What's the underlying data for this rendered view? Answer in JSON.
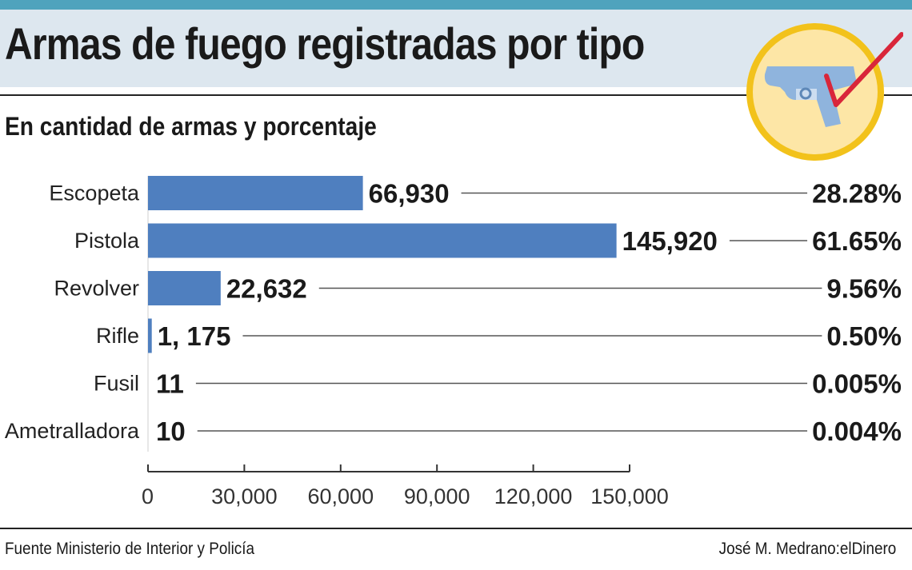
{
  "header": {
    "title": "Armas de fuego registradas por tipo",
    "subtitle": "En cantidad de armas y porcentaje"
  },
  "icons": {
    "badge": "pistol-checkmark-icon"
  },
  "colors": {
    "bar": "#4f7fbf",
    "topbar": "#4fa3bd",
    "titleband": "#dde7ef",
    "badge_fill": "#fde6a6",
    "badge_ring": "#f2c21b",
    "check": "#d9263a"
  },
  "chart_data": {
    "type": "bar",
    "orientation": "horizontal",
    "categories": [
      "Escopeta",
      "Pistola",
      "Revolver",
      "Rifle",
      "Fusil",
      "Ametralladora"
    ],
    "values": [
      66930,
      145920,
      22632,
      1175,
      11,
      10
    ],
    "value_labels": [
      "66,930",
      "145,920",
      "22,632",
      "1, 175",
      "11",
      "10"
    ],
    "percent_labels": [
      "28.28%",
      "61.65%",
      "9.56%",
      "0.50%",
      "0.005%",
      "0.004%"
    ],
    "xlim": [
      0,
      150000
    ],
    "xticks": [
      0,
      30000,
      60000,
      90000,
      120000,
      150000
    ],
    "xtick_labels": [
      "0",
      "30,000",
      "60,000",
      "90,000",
      "120,000",
      "150,000"
    ],
    "grid": false
  },
  "footer": {
    "source": "Fuente Ministerio de Interior y Policía",
    "credit": "José M. Medrano:elDinero"
  }
}
